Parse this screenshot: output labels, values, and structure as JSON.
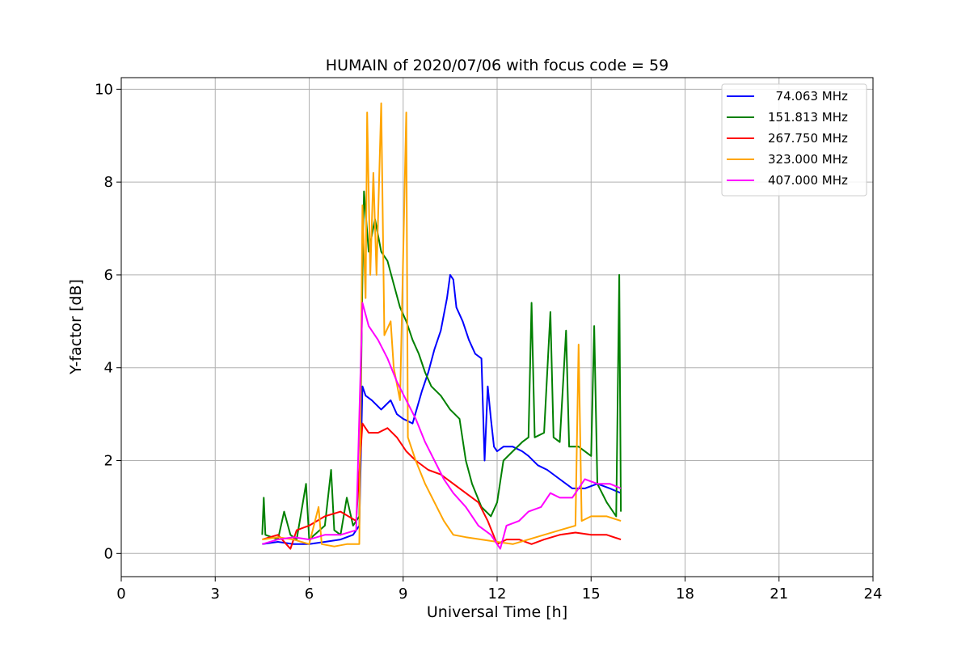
{
  "chart_data": {
    "type": "line",
    "title": "HUMAIN of 2020/07/06 with focus code = 59",
    "xlabel": "Universal Time [h]",
    "ylabel": "Y-factor [dB]",
    "xlim": [
      0,
      24
    ],
    "ylim": [
      -0.5,
      10.25
    ],
    "xticks": [
      0,
      3,
      6,
      9,
      12,
      15,
      18,
      21,
      24
    ],
    "yticks": [
      0,
      2,
      4,
      6,
      8,
      10
    ],
    "grid": true,
    "legend_position": "top-right",
    "series": [
      {
        "name": "  74.063 MHz",
        "color": "#0000ff",
        "points": [
          [
            4.5,
            0.2
          ],
          [
            5.0,
            0.25
          ],
          [
            5.5,
            0.2
          ],
          [
            6.0,
            0.2
          ],
          [
            6.5,
            0.25
          ],
          [
            7.0,
            0.3
          ],
          [
            7.4,
            0.4
          ],
          [
            7.6,
            0.6
          ],
          [
            7.7,
            3.6
          ],
          [
            7.8,
            3.4
          ],
          [
            8.0,
            3.3
          ],
          [
            8.3,
            3.1
          ],
          [
            8.6,
            3.3
          ],
          [
            8.8,
            3.0
          ],
          [
            9.0,
            2.9
          ],
          [
            9.3,
            2.8
          ],
          [
            9.6,
            3.5
          ],
          [
            9.8,
            3.9
          ],
          [
            10.0,
            4.4
          ],
          [
            10.2,
            4.8
          ],
          [
            10.4,
            5.5
          ],
          [
            10.5,
            6.0
          ],
          [
            10.6,
            5.9
          ],
          [
            10.7,
            5.3
          ],
          [
            10.9,
            5.0
          ],
          [
            11.1,
            4.6
          ],
          [
            11.3,
            4.3
          ],
          [
            11.5,
            4.2
          ],
          [
            11.6,
            2.0
          ],
          [
            11.7,
            3.6
          ],
          [
            11.8,
            2.9
          ],
          [
            11.9,
            2.3
          ],
          [
            12.0,
            2.2
          ],
          [
            12.2,
            2.3
          ],
          [
            12.5,
            2.3
          ],
          [
            12.8,
            2.2
          ],
          [
            13.0,
            2.1
          ],
          [
            13.3,
            1.9
          ],
          [
            13.6,
            1.8
          ],
          [
            14.0,
            1.6
          ],
          [
            14.4,
            1.4
          ],
          [
            14.8,
            1.4
          ],
          [
            15.2,
            1.5
          ],
          [
            15.6,
            1.4
          ],
          [
            15.95,
            1.3
          ]
        ]
      },
      {
        "name": "151.813 MHz",
        "color": "#008000",
        "points": [
          [
            4.5,
            0.4
          ],
          [
            4.55,
            1.2
          ],
          [
            4.6,
            0.4
          ],
          [
            5.0,
            0.3
          ],
          [
            5.2,
            0.9
          ],
          [
            5.4,
            0.4
          ],
          [
            5.6,
            0.3
          ],
          [
            5.9,
            1.5
          ],
          [
            6.0,
            0.3
          ],
          [
            6.5,
            0.6
          ],
          [
            6.7,
            1.8
          ],
          [
            6.8,
            0.5
          ],
          [
            7.0,
            0.4
          ],
          [
            7.2,
            1.2
          ],
          [
            7.4,
            0.6
          ],
          [
            7.6,
            0.8
          ],
          [
            7.7,
            6.0
          ],
          [
            7.75,
            7.8
          ],
          [
            7.9,
            6.5
          ],
          [
            8.1,
            7.2
          ],
          [
            8.3,
            6.5
          ],
          [
            8.5,
            6.3
          ],
          [
            8.7,
            5.8
          ],
          [
            8.9,
            5.3
          ],
          [
            9.1,
            5.0
          ],
          [
            9.3,
            4.6
          ],
          [
            9.5,
            4.3
          ],
          [
            9.7,
            3.9
          ],
          [
            9.9,
            3.6
          ],
          [
            10.2,
            3.4
          ],
          [
            10.5,
            3.1
          ],
          [
            10.8,
            2.9
          ],
          [
            11.0,
            2.0
          ],
          [
            11.2,
            1.5
          ],
          [
            11.5,
            1.0
          ],
          [
            11.8,
            0.8
          ],
          [
            12.0,
            1.1
          ],
          [
            12.2,
            2.0
          ],
          [
            12.5,
            2.2
          ],
          [
            12.8,
            2.4
          ],
          [
            13.0,
            2.5
          ],
          [
            13.1,
            5.4
          ],
          [
            13.2,
            2.5
          ],
          [
            13.5,
            2.6
          ],
          [
            13.7,
            5.2
          ],
          [
            13.8,
            2.5
          ],
          [
            14.0,
            2.4
          ],
          [
            14.2,
            4.8
          ],
          [
            14.3,
            2.3
          ],
          [
            14.6,
            2.3
          ],
          [
            15.0,
            2.1
          ],
          [
            15.1,
            4.9
          ],
          [
            15.2,
            1.5
          ],
          [
            15.5,
            1.1
          ],
          [
            15.8,
            0.8
          ],
          [
            15.9,
            6.0
          ],
          [
            15.95,
            0.9
          ]
        ]
      },
      {
        "name": "267.750 MHz",
        "color": "#ff0000",
        "points": [
          [
            4.5,
            0.3
          ],
          [
            5.0,
            0.4
          ],
          [
            5.4,
            0.1
          ],
          [
            5.6,
            0.5
          ],
          [
            6.0,
            0.6
          ],
          [
            6.5,
            0.8
          ],
          [
            7.0,
            0.9
          ],
          [
            7.5,
            0.7
          ],
          [
            7.7,
            2.8
          ],
          [
            7.9,
            2.6
          ],
          [
            8.2,
            2.6
          ],
          [
            8.5,
            2.7
          ],
          [
            8.8,
            2.5
          ],
          [
            9.1,
            2.2
          ],
          [
            9.4,
            2.0
          ],
          [
            9.8,
            1.8
          ],
          [
            10.2,
            1.7
          ],
          [
            10.6,
            1.5
          ],
          [
            11.0,
            1.3
          ],
          [
            11.4,
            1.1
          ],
          [
            11.7,
            0.7
          ],
          [
            12.0,
            0.2
          ],
          [
            12.3,
            0.3
          ],
          [
            12.7,
            0.3
          ],
          [
            13.1,
            0.2
          ],
          [
            13.5,
            0.3
          ],
          [
            14.0,
            0.4
          ],
          [
            14.5,
            0.45
          ],
          [
            15.0,
            0.4
          ],
          [
            15.5,
            0.4
          ],
          [
            15.95,
            0.3
          ]
        ]
      },
      {
        "name": "323.000 MHz",
        "color": "#ffa500",
        "points": [
          [
            4.5,
            0.3
          ],
          [
            5.0,
            0.35
          ],
          [
            5.5,
            0.3
          ],
          [
            6.0,
            0.2
          ],
          [
            6.3,
            1.0
          ],
          [
            6.4,
            0.2
          ],
          [
            6.8,
            0.15
          ],
          [
            7.2,
            0.2
          ],
          [
            7.6,
            0.2
          ],
          [
            7.7,
            7.5
          ],
          [
            7.8,
            5.5
          ],
          [
            7.85,
            9.5
          ],
          [
            7.95,
            6.0
          ],
          [
            8.05,
            8.2
          ],
          [
            8.15,
            6.0
          ],
          [
            8.3,
            9.7
          ],
          [
            8.4,
            4.7
          ],
          [
            8.6,
            5.0
          ],
          [
            8.7,
            4.0
          ],
          [
            8.9,
            3.3
          ],
          [
            9.1,
            9.5
          ],
          [
            9.15,
            2.5
          ],
          [
            9.4,
            2.0
          ],
          [
            9.7,
            1.5
          ],
          [
            10.0,
            1.1
          ],
          [
            10.3,
            0.7
          ],
          [
            10.6,
            0.4
          ],
          [
            11.0,
            0.35
          ],
          [
            11.5,
            0.3
          ],
          [
            12.0,
            0.25
          ],
          [
            12.5,
            0.2
          ],
          [
            13.0,
            0.3
          ],
          [
            13.5,
            0.4
          ],
          [
            14.0,
            0.5
          ],
          [
            14.5,
            0.6
          ],
          [
            14.6,
            4.5
          ],
          [
            14.7,
            0.7
          ],
          [
            15.0,
            0.8
          ],
          [
            15.5,
            0.8
          ],
          [
            15.95,
            0.7
          ]
        ]
      },
      {
        "name": "407.000 MHz",
        "color": "#ff00ff",
        "points": [
          [
            4.5,
            0.2
          ],
          [
            5.0,
            0.3
          ],
          [
            5.5,
            0.35
          ],
          [
            6.0,
            0.3
          ],
          [
            6.5,
            0.4
          ],
          [
            7.0,
            0.4
          ],
          [
            7.5,
            0.5
          ],
          [
            7.7,
            5.4
          ],
          [
            7.9,
            4.9
          ],
          [
            8.2,
            4.6
          ],
          [
            8.5,
            4.2
          ],
          [
            8.8,
            3.7
          ],
          [
            9.1,
            3.3
          ],
          [
            9.4,
            2.9
          ],
          [
            9.7,
            2.4
          ],
          [
            10.0,
            2.0
          ],
          [
            10.3,
            1.6
          ],
          [
            10.6,
            1.3
          ],
          [
            11.0,
            1.0
          ],
          [
            11.4,
            0.6
          ],
          [
            11.8,
            0.4
          ],
          [
            12.1,
            0.1
          ],
          [
            12.3,
            0.6
          ],
          [
            12.7,
            0.7
          ],
          [
            13.0,
            0.9
          ],
          [
            13.4,
            1.0
          ],
          [
            13.7,
            1.3
          ],
          [
            14.0,
            1.2
          ],
          [
            14.4,
            1.2
          ],
          [
            14.8,
            1.6
          ],
          [
            15.2,
            1.5
          ],
          [
            15.6,
            1.5
          ],
          [
            15.95,
            1.4
          ]
        ]
      }
    ]
  }
}
